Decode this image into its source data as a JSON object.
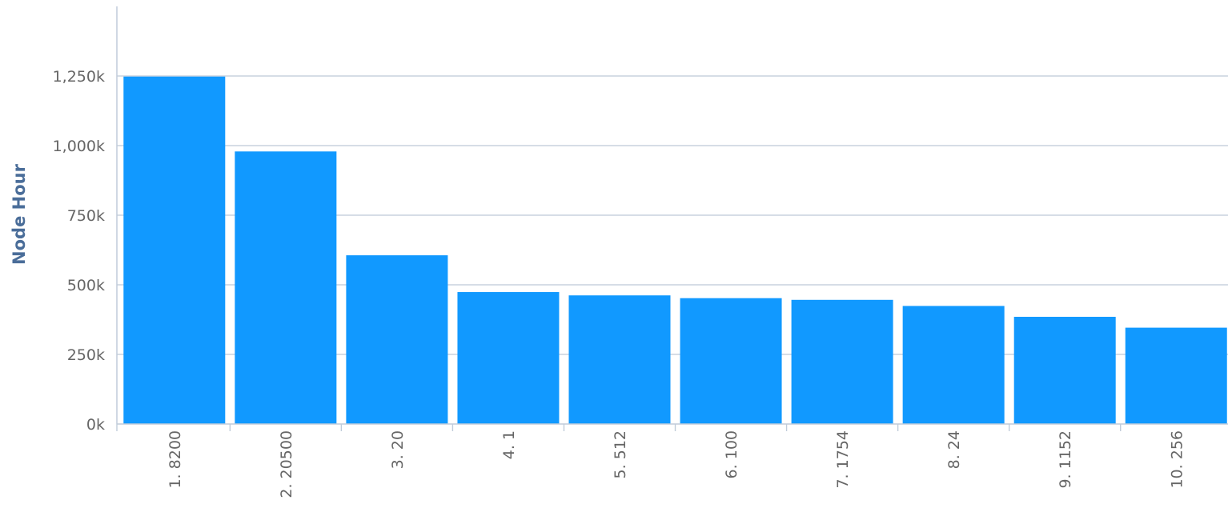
{
  "chart_data": {
    "type": "bar",
    "title": "",
    "xlabel": "",
    "ylabel": "Node Hour",
    "categories": [
      "1. 8200",
      "2. 20500",
      "3. 20",
      "4. 1",
      "5. 512",
      "6. 100",
      "7. 1754",
      "8. 24",
      "9. 1152",
      "10. 256"
    ],
    "values": [
      1248000,
      979000,
      606000,
      474000,
      462000,
      452000,
      446000,
      424000,
      385000,
      346000
    ],
    "ylim": [
      0,
      1500000
    ],
    "yticks": [
      {
        "value": 0,
        "label": "0k"
      },
      {
        "value": 250000,
        "label": "250k"
      },
      {
        "value": 500000,
        "label": "500k"
      },
      {
        "value": 750000,
        "label": "750k"
      },
      {
        "value": 1000000,
        "label": "1,000k"
      },
      {
        "value": 1250000,
        "label": "1,250k"
      }
    ],
    "grid": true,
    "legend": "none",
    "colors": {
      "bar": "#1199ff",
      "gridline": "#c9d2de",
      "axis": "#c0ccda",
      "tick_text": "#666666",
      "axis_title": "#4a6d99"
    }
  }
}
